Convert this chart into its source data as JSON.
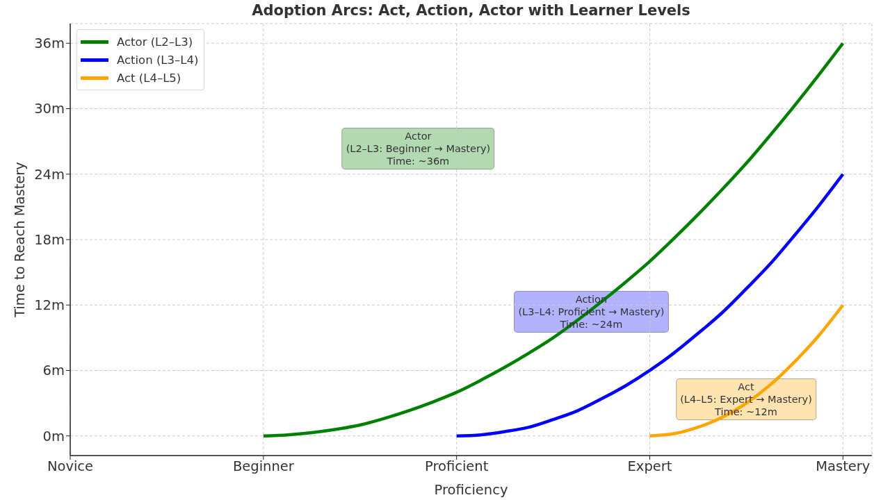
{
  "chart_data": {
    "type": "line",
    "title": "Adoption Arcs: Act, Action, Actor with Learner Levels",
    "xlabel": "Proficiency",
    "ylabel": "Time to Reach Mastery",
    "categories": [
      "Novice",
      null,
      null,
      null,
      null,
      null,
      null,
      null,
      "Beginner",
      null,
      null,
      null,
      null,
      null,
      null,
      null,
      "Proficient",
      null,
      null,
      null,
      null,
      null,
      null,
      null,
      "Expert",
      null,
      null,
      null,
      null,
      null,
      null,
      null,
      "Mastery"
    ],
    "ylim": [
      -1.8,
      37.8
    ],
    "yticks": [
      {
        "value": 0,
        "label": "0m"
      },
      {
        "value": 6,
        "label": "6m"
      },
      {
        "value": 12,
        "label": "12m"
      },
      {
        "value": 18,
        "label": "18m"
      },
      {
        "value": 24,
        "label": "24m"
      },
      {
        "value": 30,
        "label": "30m"
      },
      {
        "value": 36,
        "label": "36m"
      }
    ],
    "series": [
      {
        "name": "Actor (L2–L3)",
        "color": "#008000",
        "values": [
          null,
          null,
          null,
          null,
          null,
          null,
          null,
          null,
          0,
          0.1,
          0.3,
          0.6,
          1,
          1.6,
          2.3,
          3.1,
          4,
          5.1,
          6.3,
          7.6,
          9,
          10.6,
          12.3,
          14.1,
          16,
          18.1,
          20.3,
          22.6,
          25,
          27.6,
          30.3,
          33.1,
          36
        ]
      },
      {
        "name": "Action (L3–L4)",
        "color": "#0000ff",
        "values": [
          null,
          null,
          null,
          null,
          null,
          null,
          null,
          null,
          null,
          null,
          null,
          null,
          null,
          null,
          null,
          null,
          0,
          0.1,
          0.4,
          0.8,
          1.5,
          2.3,
          3.4,
          4.6,
          6,
          7.6,
          9.4,
          11.3,
          13.5,
          15.8,
          18.4,
          21.1,
          24
        ]
      },
      {
        "name": "Act (L4–L5)",
        "color": "#ffa500",
        "values": [
          null,
          null,
          null,
          null,
          null,
          null,
          null,
          null,
          null,
          null,
          null,
          null,
          null,
          null,
          null,
          null,
          null,
          null,
          null,
          null,
          null,
          null,
          null,
          null,
          0,
          0.2,
          0.8,
          1.7,
          3,
          4.7,
          6.8,
          9.2,
          12
        ]
      }
    ],
    "annotations": [
      "Actor\n(L2–L3: Beginner → Mastery)\nTime: ~36m",
      "Action\n(L3–L4: Proficient → Mastery)\nTime: ~24m",
      "Act\n(L4–L5: Expert → Mastery)\nTime: ~12m"
    ],
    "grid": true,
    "legend": "top left"
  }
}
